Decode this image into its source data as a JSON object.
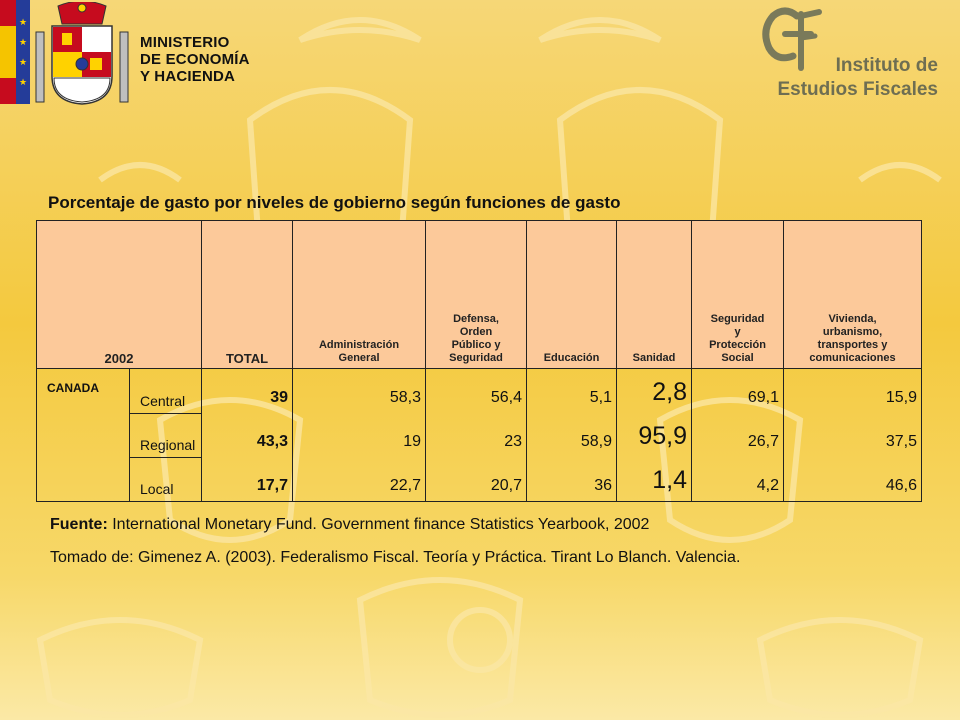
{
  "header": {
    "ministry_lines": [
      "MINISTERIO",
      "DE ECONOMÍA",
      "Y HACIENDA"
    ],
    "institute_lines": [
      "Instituto de",
      "Estudios Fiscales"
    ],
    "institute_logo_icon": "ief-logo-icon",
    "coat_of_arms_icon": "coat-of-arms-icon"
  },
  "title": "Porcentaje de gasto por niveles de gobierno según funciones de gasto",
  "table": {
    "headers": {
      "year": "2002",
      "total": "TOTAL",
      "admin": [
        "Administración",
        "General"
      ],
      "defense": [
        "Defensa,",
        "Orden",
        "Público y",
        "Seguridad"
      ],
      "education": "Educación",
      "health": "Sanidad",
      "social": [
        "Seguridad",
        "y",
        "Protección",
        "Social"
      ],
      "housing": [
        "Vivienda,",
        "urbanismo,",
        "transportes y",
        "comunicaciones"
      ]
    },
    "country": "CANADA",
    "rows": [
      {
        "level": "Central",
        "total": "39",
        "admin": "58,3",
        "defense": "56,4",
        "education": "5,1",
        "health": "2,8",
        "social": "69,1",
        "housing": "15,9"
      },
      {
        "level": "Regional",
        "total": "43,3",
        "admin": "19",
        "defense": "23",
        "education": "58,9",
        "health": "95,9",
        "social": "26,7",
        "housing": "37,5"
      },
      {
        "level": "Local",
        "total": "17,7",
        "admin": "22,7",
        "defense": "20,7",
        "education": "36",
        "health": "1,4",
        "social": "4,2",
        "housing": "46,6"
      }
    ]
  },
  "footer": {
    "source_label": "Fuente:",
    "source_text": " International Monetary Fund. Government finance Statistics Yearbook, 2002",
    "taken_from": "Tomado de: Gimenez A. (2003). Federalismo Fiscal. Teoría y Práctica. Tirant Lo Blanch. Valencia."
  },
  "colors": {
    "background": "#f4c93e",
    "header_fill": "#fcc99a",
    "flag_red": "#c60b1e",
    "eu_blue": "#243c99",
    "institute_text": "#6e6e52"
  }
}
